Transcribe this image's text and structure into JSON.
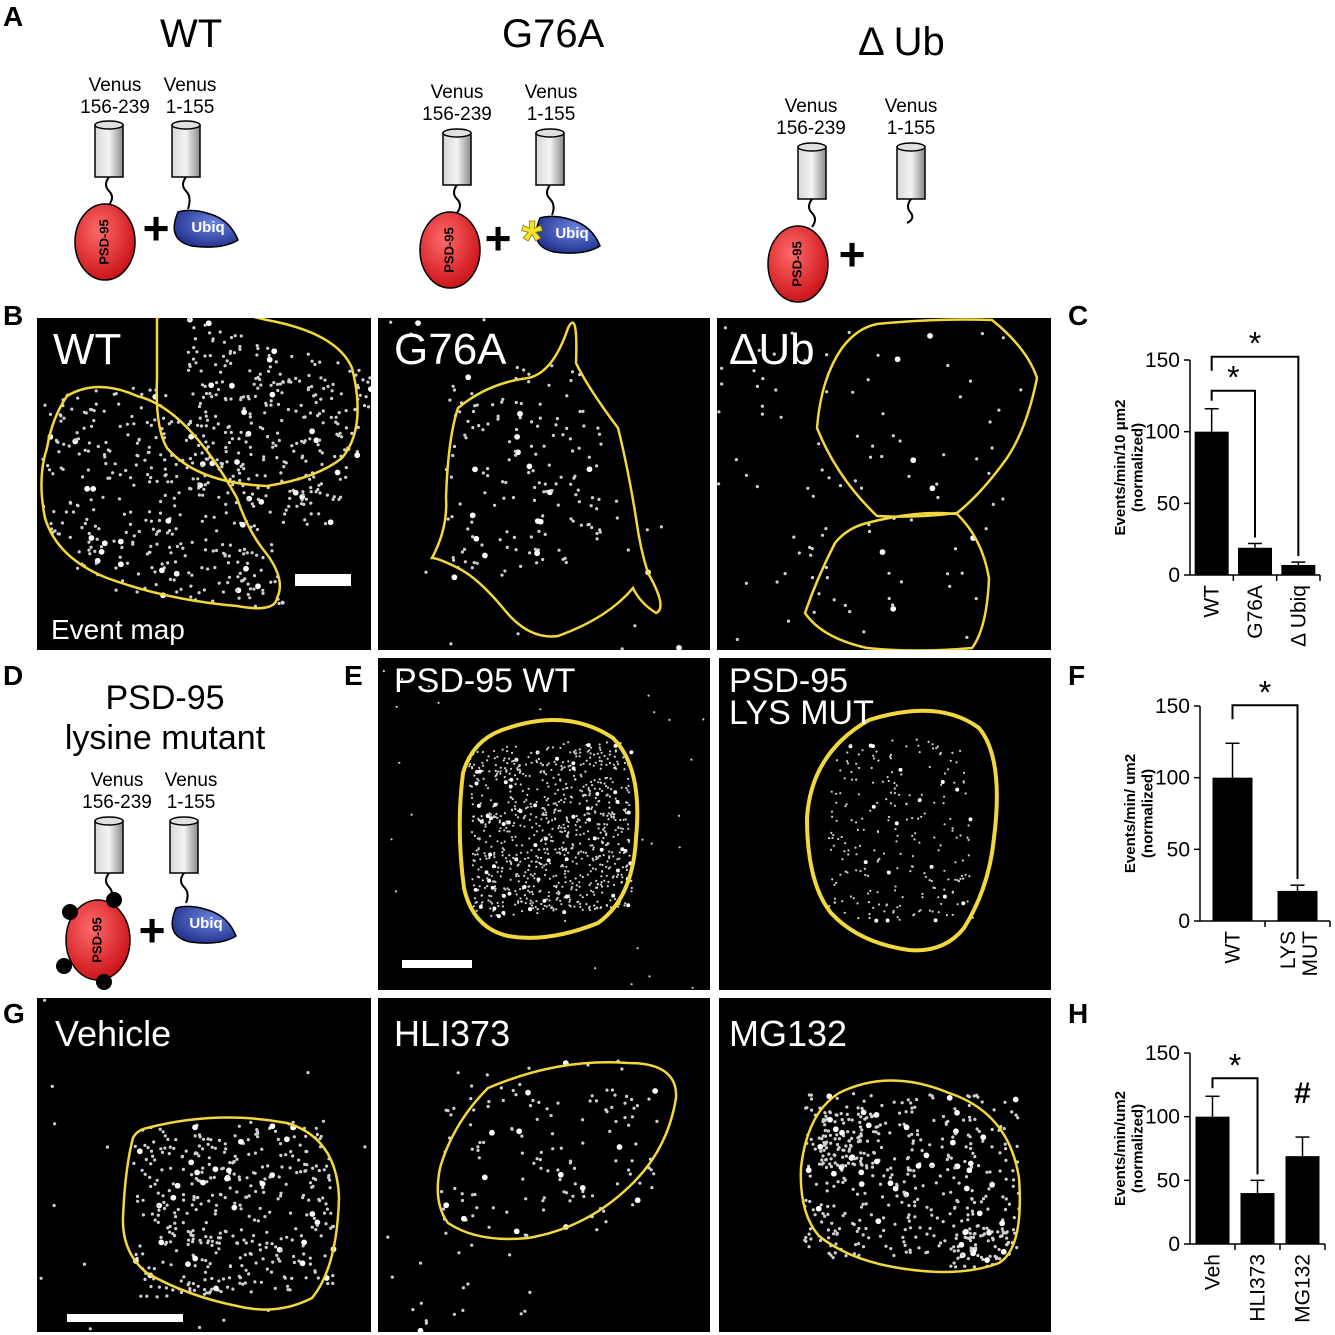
{
  "panels": {
    "A": {
      "label": "A",
      "constructs": [
        {
          "title": "WT",
          "venus_left": "Venus\n156-239",
          "venus_right": "Venus\n1-155",
          "psd": "PSD-95",
          "ubiq": "Ubiq",
          "plus": "+"
        },
        {
          "title": "G76A",
          "venus_left": "Venus\n156-239",
          "venus_right": "Venus\n1-155",
          "psd": "PSD-95",
          "ubiq": "Ubiq",
          "plus": "+",
          "mutation_mark": "*"
        },
        {
          "title": "Δ Ub",
          "venus_left": "Venus\n156-239",
          "venus_right": "Venus\n1-155",
          "psd": "PSD-95",
          "plus": "+"
        }
      ]
    },
    "B": {
      "label": "B",
      "images": [
        {
          "label": "WT",
          "sublabel": "Event map"
        },
        {
          "label": "G76A"
        },
        {
          "label": "ΔUb"
        }
      ]
    },
    "D": {
      "label": "D",
      "title_line1": "PSD-95",
      "title_line2": "lysine mutant",
      "venus_left": "Venus\n156-239",
      "venus_right": "Venus\n1-155",
      "psd": "PSD-95",
      "ubiq": "Ubiq",
      "plus": "+"
    },
    "E": {
      "label": "E",
      "images": [
        {
          "label": "PSD-95 WT"
        },
        {
          "label_line1": "PSD-95",
          "label_line2": "LYS MUT"
        }
      ]
    },
    "G": {
      "label": "G",
      "images": [
        {
          "label": "Vehicle"
        },
        {
          "label": "HLI373"
        },
        {
          "label": "MG132"
        }
      ]
    }
  },
  "chart_data": [
    {
      "panel": "C",
      "type": "bar",
      "categories": [
        "WT",
        "G76A",
        "Δ Ubiq"
      ],
      "values": [
        100,
        19,
        7
      ],
      "errors": [
        16,
        3,
        2
      ],
      "ylabel_line1": "Events/min/10  μm2",
      "ylabel_line2": "(normalized)",
      "ylim": [
        0,
        150
      ],
      "yticks": [
        0,
        50,
        100,
        150
      ],
      "significance": [
        {
          "from": "WT",
          "to": "G76A",
          "mark": "*"
        },
        {
          "from": "WT",
          "to": "Δ Ubiq",
          "mark": "*"
        }
      ]
    },
    {
      "panel": "F",
      "type": "bar",
      "categories": [
        "WT",
        "LYS\nMUT"
      ],
      "values": [
        100,
        21
      ],
      "errors": [
        24,
        4
      ],
      "ylabel_line1": "Events/min/ um2",
      "ylabel_line2": "(normalized)",
      "ylim": [
        0,
        150
      ],
      "yticks": [
        0,
        50,
        100,
        150
      ],
      "significance": [
        {
          "from": "WT",
          "to": "LYS\nMUT",
          "mark": "*"
        }
      ]
    },
    {
      "panel": "H",
      "type": "bar",
      "categories": [
        "Veh",
        "HLI373",
        "MG132"
      ],
      "values": [
        100,
        40,
        69
      ],
      "errors": [
        16,
        10,
        15
      ],
      "ylabel_line1": "Events/min/um2",
      "ylabel_line2": "(normalized)",
      "ylim": [
        0,
        150
      ],
      "yticks": [
        0,
        50,
        100,
        150
      ],
      "significance": [
        {
          "from": "Veh",
          "to": "HLI373",
          "mark": "*"
        }
      ],
      "annotations": [
        {
          "category": "MG132",
          "mark": "#"
        }
      ]
    }
  ],
  "colors": {
    "psd95": "#e8161d",
    "ubiq": "#2a41a6",
    "outline": "#f2d83c",
    "star": "#f4e32b",
    "cylinder": "#b0b0b0"
  }
}
